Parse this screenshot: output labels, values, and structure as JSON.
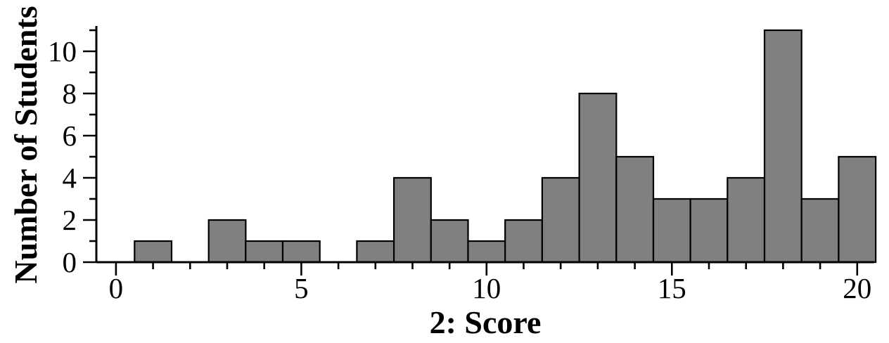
{
  "chart_data": {
    "type": "bar",
    "variant": "histogram",
    "title": "",
    "xlabel": "2: Score",
    "ylabel": "Number of Students",
    "bin_width": 1,
    "categories": [
      1,
      2,
      3,
      4,
      5,
      6,
      7,
      8,
      9,
      10,
      11,
      12,
      13,
      14,
      15,
      16,
      17,
      18,
      19,
      20
    ],
    "values": [
      1,
      0,
      2,
      1,
      1,
      0,
      1,
      4,
      2,
      1,
      2,
      4,
      8,
      5,
      3,
      3,
      4,
      11,
      3,
      5
    ],
    "xlim": [
      -0.53,
      20.46
    ],
    "ylim": [
      0,
      11.2
    ],
    "x_major_ticks": [
      0,
      5,
      10,
      15,
      20
    ],
    "x_minor_tick_step": 1,
    "y_major_ticks": [
      0,
      2,
      4,
      6,
      8,
      10
    ],
    "y_minor_ticks": [
      1,
      3,
      5,
      7,
      9,
      11
    ],
    "grid": false,
    "legend": null,
    "bar_fill": "#808080",
    "bar_stroke": "#000000",
    "axis_color": "#000000",
    "label_color": "#000000"
  }
}
